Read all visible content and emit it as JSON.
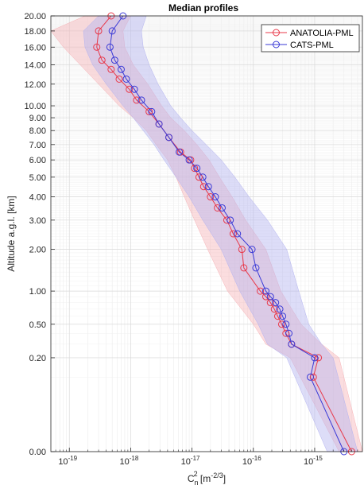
{
  "chart_data": {
    "type": "line",
    "title": "Median profiles",
    "ylabel": "Altitude a.g.l. [km]",
    "xlabel": {
      "base": "C",
      "sub": "n",
      "sup": "2",
      "unit": " [m",
      "unit_sup": "-2/3",
      "close": "]"
    },
    "x_scale": "log",
    "xlim": [
      5e-20,
      6e-15
    ],
    "ylim": [
      0,
      20
    ],
    "grid": true,
    "legend_position": "top-right",
    "x_ticks": [
      {
        "value": 1e-19,
        "base": "10",
        "exp": "-19"
      },
      {
        "value": 1e-18,
        "base": "10",
        "exp": "-18"
      },
      {
        "value": 1e-17,
        "base": "10",
        "exp": "-17"
      },
      {
        "value": 1e-16,
        "base": "10",
        "exp": "-16"
      },
      {
        "value": 1e-15,
        "base": "10",
        "exp": "-15"
      }
    ],
    "y_ticks": [
      "0.00",
      "0.20",
      "0.50",
      "1.00",
      "2.00",
      "3.00",
      "4.00",
      "5.00",
      "6.00",
      "7.00",
      "8.00",
      "9.00",
      "10.00",
      "12.00",
      "14.00",
      "16.00",
      "18.00",
      "20.00"
    ],
    "series": [
      {
        "name": "ANATOLIA-PML",
        "color": "#e8394a",
        "band_color": "#f7b3b7",
        "points": [
          [
            0.0,
            4e-15
          ],
          [
            0.1,
            9.5e-16
          ],
          [
            0.2,
            1.15e-15
          ],
          [
            0.3,
            4.2e-16
          ],
          [
            0.4,
            3.4e-16
          ],
          [
            0.5,
            2.9e-16
          ],
          [
            0.6,
            2.5e-16
          ],
          [
            0.7,
            2.2e-16
          ],
          [
            0.8,
            1.9e-16
          ],
          [
            0.9,
            1.6e-16
          ],
          [
            1.0,
            1.3e-16
          ],
          [
            1.5,
            7e-17
          ],
          [
            2.0,
            6.5e-17
          ],
          [
            2.5,
            4.7e-17
          ],
          [
            3.0,
            3.7e-17
          ],
          [
            3.5,
            2.6e-17
          ],
          [
            4.0,
            2e-17
          ],
          [
            4.5,
            1.55e-17
          ],
          [
            5.0,
            1.3e-17
          ],
          [
            5.5,
            1.1e-17
          ],
          [
            6.0,
            9.5e-18
          ],
          [
            6.5,
            6.5e-18
          ],
          [
            7.5,
            4.2e-18
          ],
          [
            8.5,
            2.9e-18
          ],
          [
            9.5,
            2e-18
          ],
          [
            10.5,
            1.25e-18
          ],
          [
            11.5,
            9.5e-19
          ],
          [
            12.5,
            6.5e-19
          ],
          [
            13.5,
            4.8e-19
          ],
          [
            14.5,
            3.4e-19
          ],
          [
            16.0,
            2.8e-19
          ],
          [
            18.0,
            3e-19
          ],
          [
            20.0,
            4.8e-19
          ]
        ],
        "band_low": [
          [
            0.0,
            2.5e-15
          ],
          [
            0.2,
            4e-16
          ],
          [
            0.3,
            1.6e-16
          ],
          [
            0.5,
            1e-16
          ],
          [
            1.0,
            3.8e-17
          ],
          [
            2.0,
            1.8e-17
          ],
          [
            3.0,
            1.1e-17
          ],
          [
            4.0,
            7.5e-18
          ],
          [
            5.0,
            5.5e-18
          ],
          [
            6.0,
            4e-18
          ],
          [
            7.0,
            2.6e-18
          ],
          [
            8.0,
            1.8e-18
          ],
          [
            9.0,
            1.1e-18
          ],
          [
            10.0,
            6.5e-19
          ],
          [
            12.0,
            3e-19
          ],
          [
            14.0,
            1.5e-19
          ],
          [
            16.0,
            8e-20
          ],
          [
            18.0,
            5e-20
          ],
          [
            20.0,
            1.8e-19
          ]
        ],
        "band_high": [
          [
            0.0,
            6e-15
          ],
          [
            0.2,
            2.5e-15
          ],
          [
            0.3,
            1.3e-15
          ],
          [
            0.5,
            6e-16
          ],
          [
            1.0,
            2.8e-16
          ],
          [
            2.0,
            1.6e-16
          ],
          [
            3.0,
            7.5e-17
          ],
          [
            4.0,
            4.5e-17
          ],
          [
            5.0,
            2.8e-17
          ],
          [
            6.0,
            1.9e-17
          ],
          [
            7.0,
            1.2e-17
          ],
          [
            8.0,
            7.5e-18
          ],
          [
            9.0,
            4.5e-18
          ],
          [
            10.0,
            3.2e-18
          ],
          [
            12.0,
            1.9e-18
          ],
          [
            14.0,
            1.1e-18
          ],
          [
            16.0,
            8e-19
          ],
          [
            18.0,
            7.5e-19
          ],
          [
            20.0,
            1e-18
          ]
        ]
      },
      {
        "name": "CATS-PML",
        "color": "#3a3ad6",
        "band_color": "#b3b3f0",
        "points": [
          [
            0.0,
            3e-15
          ],
          [
            0.1,
            8.5e-16
          ],
          [
            0.2,
            1e-15
          ],
          [
            0.3,
            4.2e-16
          ],
          [
            0.4,
            3.8e-16
          ],
          [
            0.5,
            3.4e-16
          ],
          [
            0.6,
            3e-16
          ],
          [
            0.7,
            2.7e-16
          ],
          [
            0.8,
            2.3e-16
          ],
          [
            0.9,
            1.9e-16
          ],
          [
            1.0,
            1.6e-16
          ],
          [
            1.5,
            1.1e-16
          ],
          [
            2.0,
            9.5e-17
          ],
          [
            2.5,
            5.5e-17
          ],
          [
            3.0,
            4.2e-17
          ],
          [
            3.5,
            3.1e-17
          ],
          [
            4.0,
            2.4e-17
          ],
          [
            4.5,
            1.85e-17
          ],
          [
            5.0,
            1.5e-17
          ],
          [
            5.5,
            1.2e-17
          ],
          [
            6.0,
            9e-18
          ],
          [
            6.5,
            6.2e-18
          ],
          [
            7.5,
            4.2e-18
          ],
          [
            8.5,
            2.9e-18
          ],
          [
            9.5,
            2.2e-18
          ],
          [
            10.5,
            1.5e-18
          ],
          [
            11.5,
            1.15e-18
          ],
          [
            12.5,
            8.5e-19
          ],
          [
            13.5,
            7e-19
          ],
          [
            14.5,
            5.5e-19
          ],
          [
            16.0,
            4.6e-19
          ],
          [
            18.0,
            5e-19
          ],
          [
            20.0,
            7.5e-19
          ]
        ],
        "band_low": [
          [
            0.0,
            1.6e-15
          ],
          [
            0.2,
            3.5e-16
          ],
          [
            0.3,
            1.7e-16
          ],
          [
            0.5,
            1.2e-16
          ],
          [
            1.0,
            6e-17
          ],
          [
            2.0,
            3e-17
          ],
          [
            3.0,
            1.5e-17
          ],
          [
            4.0,
            9e-18
          ],
          [
            5.0,
            5.5e-18
          ],
          [
            6.0,
            3.5e-18
          ],
          [
            7.0,
            2.4e-18
          ],
          [
            8.0,
            1.6e-18
          ],
          [
            9.0,
            1.1e-18
          ],
          [
            10.0,
            7.5e-19
          ],
          [
            12.0,
            4e-19
          ],
          [
            14.0,
            2.4e-19
          ],
          [
            16.0,
            1.8e-19
          ],
          [
            18.0,
            1.7e-19
          ],
          [
            20.0,
            3e-19
          ]
        ],
        "band_high": [
          [
            0.0,
            5e-15
          ],
          [
            0.2,
            2e-15
          ],
          [
            0.3,
            1.3e-15
          ],
          [
            0.5,
            8e-16
          ],
          [
            1.0,
            5.5e-16
          ],
          [
            2.0,
            3.5e-16
          ],
          [
            3.0,
            1.7e-16
          ],
          [
            4.0,
            8.5e-17
          ],
          [
            5.0,
            5e-17
          ],
          [
            6.0,
            3e-17
          ],
          [
            7.0,
            1.7e-17
          ],
          [
            8.0,
            1e-17
          ],
          [
            9.0,
            6.5e-18
          ],
          [
            10.0,
            4.5e-18
          ],
          [
            12.0,
            2.8e-18
          ],
          [
            14.0,
            2e-18
          ],
          [
            16.0,
            1.6e-18
          ],
          [
            18.0,
            1.5e-18
          ],
          [
            20.0,
            1.8e-18
          ]
        ]
      }
    ]
  }
}
